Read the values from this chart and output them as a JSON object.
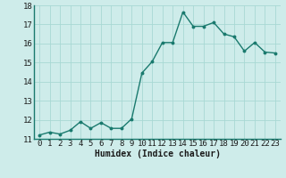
{
  "x": [
    0,
    1,
    2,
    3,
    4,
    5,
    6,
    7,
    8,
    9,
    10,
    11,
    12,
    13,
    14,
    15,
    16,
    17,
    18,
    19,
    20,
    21,
    22,
    23
  ],
  "y": [
    11.2,
    11.35,
    11.25,
    11.45,
    11.9,
    11.55,
    11.85,
    11.55,
    11.55,
    12.05,
    14.45,
    15.05,
    16.05,
    16.05,
    17.65,
    16.9,
    16.9,
    17.1,
    16.5,
    16.35,
    15.6,
    16.05,
    15.55,
    15.5
  ],
  "line_color": "#1a7a6e",
  "marker": "o",
  "marker_size": 1.8,
  "line_width": 1.0,
  "bg_color": "#ceecea",
  "grid_color": "#a8d8d4",
  "xlabel": "Humidex (Indice chaleur)",
  "xlabel_fontsize": 7,
  "tick_fontsize": 6.5,
  "ylim": [
    11,
    18
  ],
  "xlim": [
    -0.5,
    23.5
  ],
  "yticks": [
    11,
    12,
    13,
    14,
    15,
    16,
    17,
    18
  ],
  "xticks": [
    0,
    1,
    2,
    3,
    4,
    5,
    6,
    7,
    8,
    9,
    10,
    11,
    12,
    13,
    14,
    15,
    16,
    17,
    18,
    19,
    20,
    21,
    22,
    23
  ],
  "spine_color": "#1a7a6e"
}
